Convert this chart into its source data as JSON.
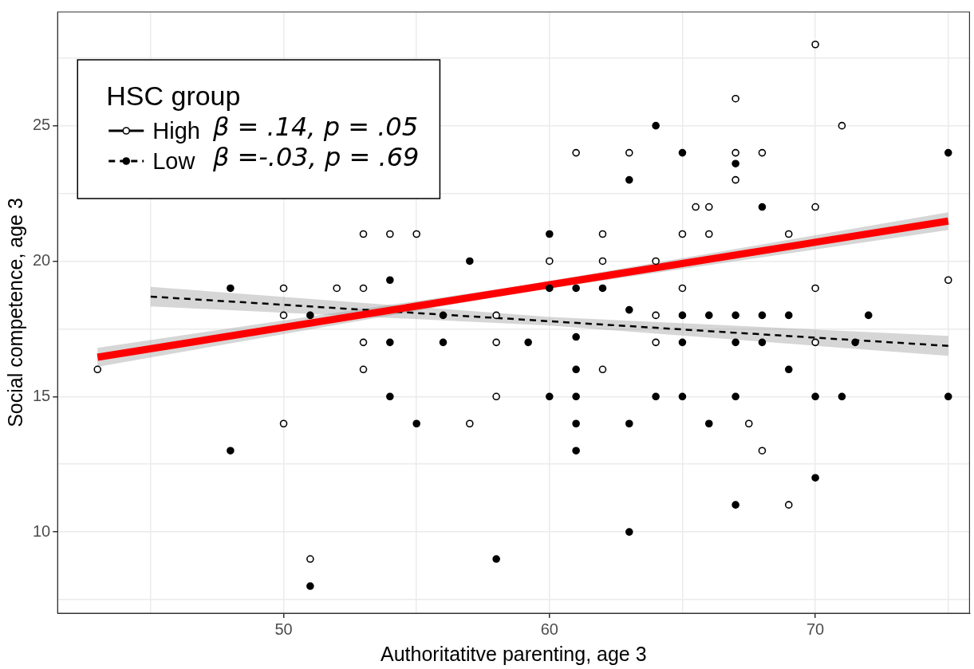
{
  "chart_data": {
    "type": "scatter",
    "xlabel": "Authoritatitve parenting, age 3",
    "ylabel": "Social competence, age 3",
    "legend_title": "HSC group",
    "legend": "top left",
    "grid": true,
    "annotations": [
      "β = .14, p = .05",
      "β =-.03, p = .69"
    ],
    "xlim": [
      41.5,
      75.8
    ],
    "xticks": [
      {
        "value": 45,
        "label": null
      },
      50,
      {
        "value": 55,
        "label": null
      },
      60,
      {
        "value": 65,
        "label": null
      },
      70,
      {
        "value": 75,
        "label": null
      }
    ],
    "ylim": [
      7.0,
      29.2
    ],
    "yticks": [
      {
        "value": 7.5,
        "label": null
      },
      10,
      {
        "value": 12.5,
        "label": null
      },
      15,
      {
        "value": 17.5,
        "label": null
      },
      20,
      {
        "value": 22.5,
        "label": null
      },
      25,
      {
        "value": 27.5,
        "label": null
      }
    ],
    "series": [
      {
        "name": "High",
        "type": "scatter",
        "marker": "circle",
        "color": "#000000",
        "x": [
          43,
          50,
          50,
          50,
          51,
          52,
          53,
          53,
          53,
          53,
          54,
          55,
          57,
          58,
          58,
          58,
          60,
          61,
          62,
          62,
          62,
          63,
          64,
          64,
          64,
          65,
          65,
          65.5,
          66,
          66,
          67,
          67,
          67,
          67.5,
          68,
          68,
          69,
          69,
          70,
          70,
          70,
          70,
          71,
          75
        ],
        "values": [
          16,
          19,
          18,
          14,
          9,
          19,
          21,
          19,
          17,
          16,
          21,
          21,
          14,
          18,
          17,
          15,
          20,
          24,
          21,
          20,
          16,
          24,
          20,
          18,
          17,
          19,
          21,
          22,
          22,
          21,
          26,
          24,
          23,
          14,
          24,
          13,
          21,
          11,
          28,
          22,
          19,
          17,
          25,
          19.3
        ]
      },
      {
        "name": "Low",
        "type": "scatter",
        "marker": "circle",
        "color": "#000000",
        "x": [
          48,
          48,
          51,
          51,
          54,
          54,
          54,
          55,
          56,
          56,
          57,
          58,
          59.2,
          60,
          60,
          60,
          61,
          61,
          61,
          61,
          61,
          61,
          62,
          63,
          63,
          63,
          63,
          64,
          64,
          65,
          65,
          65,
          65,
          66,
          66,
          67,
          67,
          67,
          67,
          67,
          68,
          68,
          68,
          69,
          69,
          70,
          70,
          71,
          71.5,
          72,
          75,
          75
        ],
        "values": [
          13,
          19,
          18,
          8,
          19.3,
          17,
          15,
          14,
          18,
          17,
          20,
          9,
          17,
          21,
          19,
          15,
          19,
          17.2,
          16,
          15,
          14,
          13,
          19,
          23,
          18.2,
          14,
          10,
          25,
          15,
          24,
          18,
          17,
          15,
          18,
          14,
          23.6,
          18,
          17,
          15,
          11,
          22,
          18,
          17,
          18,
          16,
          15,
          12,
          15,
          17,
          18,
          24,
          15
        ]
      },
      {
        "type": "line",
        "marker": "none",
        "line_style": "solid",
        "color": "#ff0000",
        "x": [
          43,
          59,
          75
        ],
        "values": [
          16.45,
          18.97,
          21.48
        ],
        "lower": [
          16.1,
          18.85,
          21.15
        ],
        "upper": [
          16.8,
          19.1,
          21.8
        ]
      },
      {
        "type": "line",
        "marker": "none",
        "line_style": "dashed",
        "color": "#000000",
        "x": [
          45,
          60,
          75
        ],
        "values": [
          18.69,
          17.78,
          16.87
        ],
        "lower": [
          18.33,
          17.62,
          16.5
        ],
        "upper": [
          19.05,
          17.94,
          17.24
        ]
      }
    ]
  }
}
